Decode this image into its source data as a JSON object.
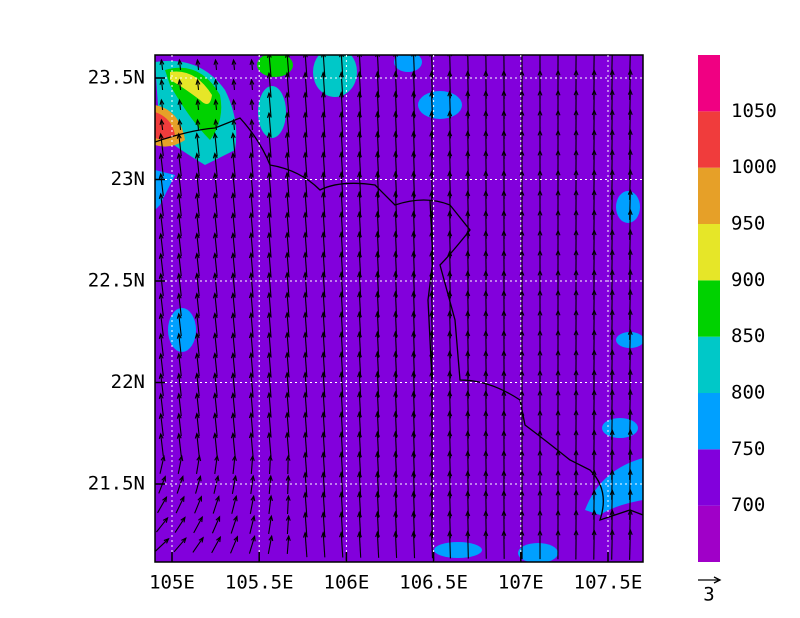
{
  "map": {
    "x_ticks": [
      {
        "value": 105,
        "label": "105E"
      },
      {
        "value": 105.5,
        "label": "105.5E"
      },
      {
        "value": 106,
        "label": "106E"
      },
      {
        "value": 106.5,
        "label": "106.5E"
      },
      {
        "value": 107,
        "label": "107E"
      },
      {
        "value": 107.5,
        "label": "107.5E"
      }
    ],
    "y_ticks": [
      {
        "value": 21.5,
        "label": "21.5N"
      },
      {
        "value": 22,
        "label": "22N"
      },
      {
        "value": 22.5,
        "label": "22.5N"
      },
      {
        "value": 23,
        "label": "23N"
      },
      {
        "value": 23.5,
        "label": "23.5N"
      }
    ],
    "colorbar": {
      "levels": [
        700,
        750,
        800,
        850,
        900,
        950,
        1000,
        1050
      ],
      "colors": [
        "#a000c8",
        "#8200dc",
        "#00a0ff",
        "#00c8c8",
        "#00d200",
        "#e6e628",
        "#e6a028",
        "#f03c3c",
        "#f00082"
      ]
    },
    "reference_vector": 3
  }
}
